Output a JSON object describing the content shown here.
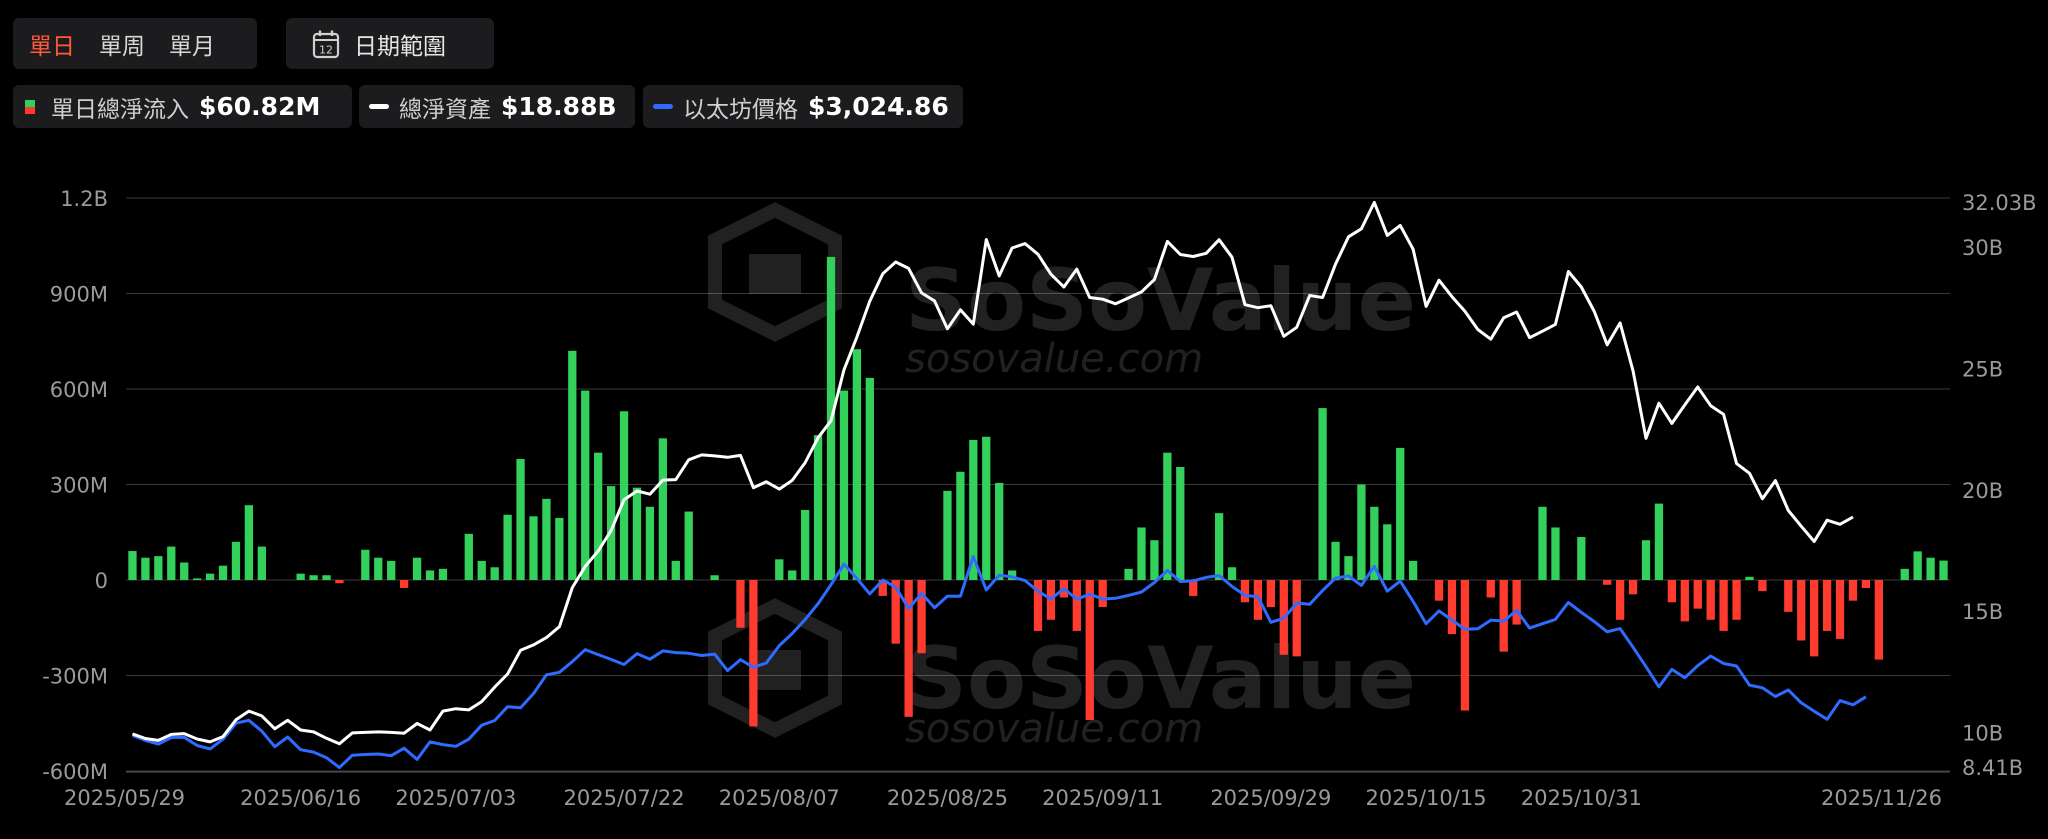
{
  "period_tabs": [
    {
      "label": "單日",
      "active": true
    },
    {
      "label": "單周",
      "active": false
    },
    {
      "label": "單月",
      "active": false
    }
  ],
  "date_range_button": {
    "label": "日期範圍",
    "icon": "calendar-icon",
    "icon_text": "12"
  },
  "legend": [
    {
      "label": "單日總淨流入",
      "value": "$60.82M",
      "swatch": "split-green-red"
    },
    {
      "label": "總淨資產",
      "value": "$18.88B",
      "swatch_color": "#ffffff"
    },
    {
      "label": "以太坊價格",
      "value": "$3,024.86",
      "swatch_color": "#2f6bff"
    }
  ],
  "watermark": {
    "brand": "SoSoValue",
    "url": "sosovalue.com"
  },
  "colors": {
    "inflow": "#33d15b",
    "outflow": "#ff3b30",
    "assets_line": "#ffffff",
    "price_line": "#2f6bff",
    "active_tab": "#ff5a3c"
  },
  "chart_data": {
    "type": "bar+line",
    "x_tick_labels": [
      "2025/05/29",
      "2025/06/16",
      "2025/07/03",
      "2025/07/22",
      "2025/08/07",
      "2025/08/25",
      "2025/09/11",
      "2025/09/29",
      "2025/10/15",
      "2025/10/31",
      "2025/11/26"
    ],
    "x_tick_index": [
      0,
      13,
      25,
      38,
      50,
      63,
      75,
      88,
      100,
      112,
      130
    ],
    "left_axis": {
      "ticks": [
        "1.2B",
        "900M",
        "600M",
        "300M",
        "0",
        "-300M",
        "-600M"
      ],
      "values_M": [
        1200,
        900,
        600,
        300,
        0,
        -300,
        -600
      ],
      "ylim_M": [
        -600,
        1200
      ]
    },
    "right_axis": {
      "ticks": [
        "32.03B",
        "30B",
        "25B",
        "20B",
        "15B",
        "10B",
        "8.41B"
      ],
      "values_B": [
        32.03,
        30,
        25,
        20,
        15,
        10,
        8.41
      ],
      "ylim_B": [
        8.41,
        32.03
      ]
    },
    "series": [
      {
        "name": "單日總淨流入",
        "kind": "bar",
        "axis": "left",
        "unit": "M USD",
        "values": [
          91,
          70,
          75,
          105,
          55,
          5,
          20,
          45,
          120,
          235,
          105,
          0,
          0,
          20,
          15,
          15,
          -10,
          0,
          95,
          70,
          60,
          -25,
          70,
          30,
          35,
          0,
          145,
          60,
          40,
          205,
          380,
          200,
          255,
          195,
          720,
          595,
          400,
          295,
          530,
          290,
          230,
          445,
          60,
          215,
          0,
          15,
          0,
          -150,
          -460,
          0,
          65,
          30,
          220,
          455,
          1015,
          595,
          725,
          635,
          -50,
          -200,
          -430,
          -230,
          0,
          280,
          340,
          440,
          450,
          305,
          30,
          0,
          -160,
          -125,
          -55,
          -160,
          -440,
          -85,
          0,
          35,
          165,
          125,
          400,
          355,
          -50,
          0,
          210,
          40,
          -70,
          -125,
          -85,
          -235,
          -240,
          0,
          540,
          120,
          75,
          300,
          230,
          175,
          415,
          60,
          0,
          -65,
          -170,
          -410,
          0,
          -55,
          -225,
          -140,
          0,
          230,
          165,
          0,
          135,
          0,
          -15,
          -125,
          -45,
          125,
          240,
          -70,
          -130,
          -90,
          -125,
          -160,
          -125,
          10,
          -35,
          0,
          -100,
          -190,
          -240,
          -160,
          -185,
          -65,
          -25,
          -250,
          0,
          35,
          90,
          70,
          61
        ]
      },
      {
        "name": "總淨資產",
        "kind": "line",
        "axis": "right",
        "unit": "B USD",
        "values": [
          9.94,
          9.75,
          9.67,
          9.92,
          9.95,
          9.73,
          9.61,
          9.83,
          10.52,
          10.88,
          10.68,
          10.15,
          10.5,
          10.1,
          10.02,
          9.76,
          9.53,
          9.98,
          10.0,
          10.02,
          10.0,
          9.97,
          10.37,
          10.1,
          10.88,
          10.98,
          10.93,
          11.27,
          11.87,
          12.41,
          13.39,
          13.61,
          13.91,
          14.36,
          15.97,
          16.84,
          17.48,
          18.32,
          19.59,
          19.95,
          19.82,
          20.4,
          20.42,
          21.24,
          21.44,
          21.4,
          21.34,
          21.42,
          20.09,
          20.33,
          20.03,
          20.39,
          21.12,
          22.15,
          22.85,
          24.95,
          26.3,
          27.78,
          28.91,
          29.39,
          29.13,
          28.12,
          27.79,
          26.64,
          27.42,
          26.83,
          30.32,
          28.82,
          29.97,
          30.15,
          29.71,
          28.89,
          28.36,
          29.1,
          27.93,
          27.86,
          27.67,
          27.91,
          28.16,
          28.67,
          30.24,
          29.7,
          29.62,
          29.75,
          30.31,
          29.59,
          27.63,
          27.51,
          27.59,
          26.33,
          26.7,
          28.01,
          27.93,
          29.3,
          30.43,
          30.76,
          31.85,
          30.49,
          30.9,
          29.92,
          27.56,
          28.64,
          27.96,
          27.36,
          26.61,
          26.21,
          27.09,
          27.33,
          26.27,
          26.54,
          26.82,
          29.0,
          28.36,
          27.35,
          25.98,
          26.88,
          24.89,
          22.12,
          23.57,
          22.74,
          23.5,
          24.24,
          23.47,
          23.11,
          21.08,
          20.68,
          19.63,
          20.38,
          19.15,
          18.5,
          17.87,
          18.75,
          18.58,
          18.88
        ]
      },
      {
        "name": "以太坊價格",
        "kind": "line",
        "axis": "right",
        "unit": "B USD",
        "values": [
          9.88,
          9.67,
          9.52,
          9.79,
          9.8,
          9.46,
          9.32,
          9.72,
          10.38,
          10.5,
          10.05,
          9.41,
          9.81,
          9.29,
          9.19,
          8.96,
          8.55,
          9.06,
          9.09,
          9.11,
          9.04,
          9.35,
          8.89,
          9.61,
          9.5,
          9.43,
          9.72,
          10.3,
          10.49,
          11.06,
          11.02,
          11.6,
          12.37,
          12.48,
          12.92,
          13.41,
          13.21,
          13.01,
          12.8,
          13.25,
          13.02,
          13.36,
          13.29,
          13.26,
          13.17,
          13.23,
          12.55,
          13.0,
          12.69,
          12.86,
          13.58,
          14.08,
          14.65,
          15.31,
          16.09,
          16.94,
          16.35,
          15.71,
          16.28,
          15.99,
          15.11,
          15.73,
          15.14,
          15.62,
          15.61,
          17.25,
          15.87,
          16.48,
          16.41,
          16.26,
          15.82,
          15.5,
          15.93,
          15.49,
          15.7,
          15.5,
          15.53,
          15.65,
          15.79,
          16.18,
          16.68,
          16.22,
          16.25,
          16.39,
          16.47,
          16.02,
          15.65,
          15.59,
          14.54,
          14.71,
          15.33,
          15.28,
          15.85,
          16.36,
          16.45,
          16.06,
          16.85,
          15.82,
          16.24,
          15.4,
          14.48,
          15.01,
          14.63,
          14.25,
          14.27,
          14.63,
          14.59,
          15.03,
          14.3,
          14.48,
          14.66,
          15.36,
          14.95,
          14.57,
          14.15,
          14.28,
          13.51,
          12.71,
          11.88,
          12.6,
          12.25,
          12.75,
          13.15,
          12.84,
          12.74,
          11.95,
          11.84,
          11.48,
          11.75,
          11.22,
          10.87,
          10.54,
          11.31,
          11.14,
          11.47
        ]
      }
    ]
  }
}
